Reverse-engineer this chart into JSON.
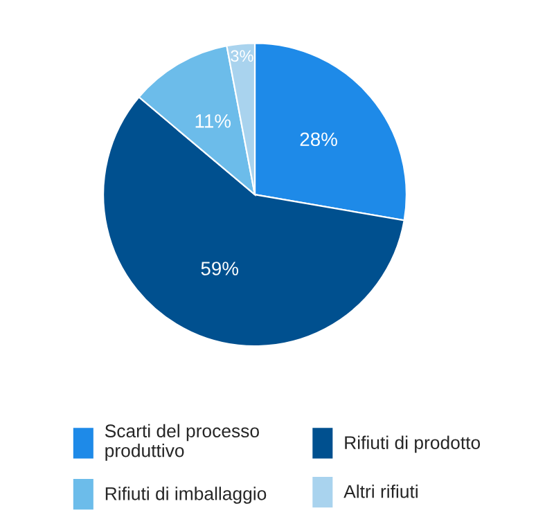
{
  "chart_data": {
    "type": "pie",
    "categories": [
      "Scarti del processo\nproduttivo",
      "Rifiuti di prodotto",
      "Rifiuti di imballaggio",
      "Altri rifiuti"
    ],
    "values": [
      28,
      59,
      11,
      3
    ],
    "colors": [
      "#1e8ae8",
      "#00508f",
      "#6cbcea",
      "#a9d3ee"
    ],
    "value_labels": [
      "28%",
      "59%",
      "11%",
      "3%"
    ],
    "legend": "bottom"
  }
}
